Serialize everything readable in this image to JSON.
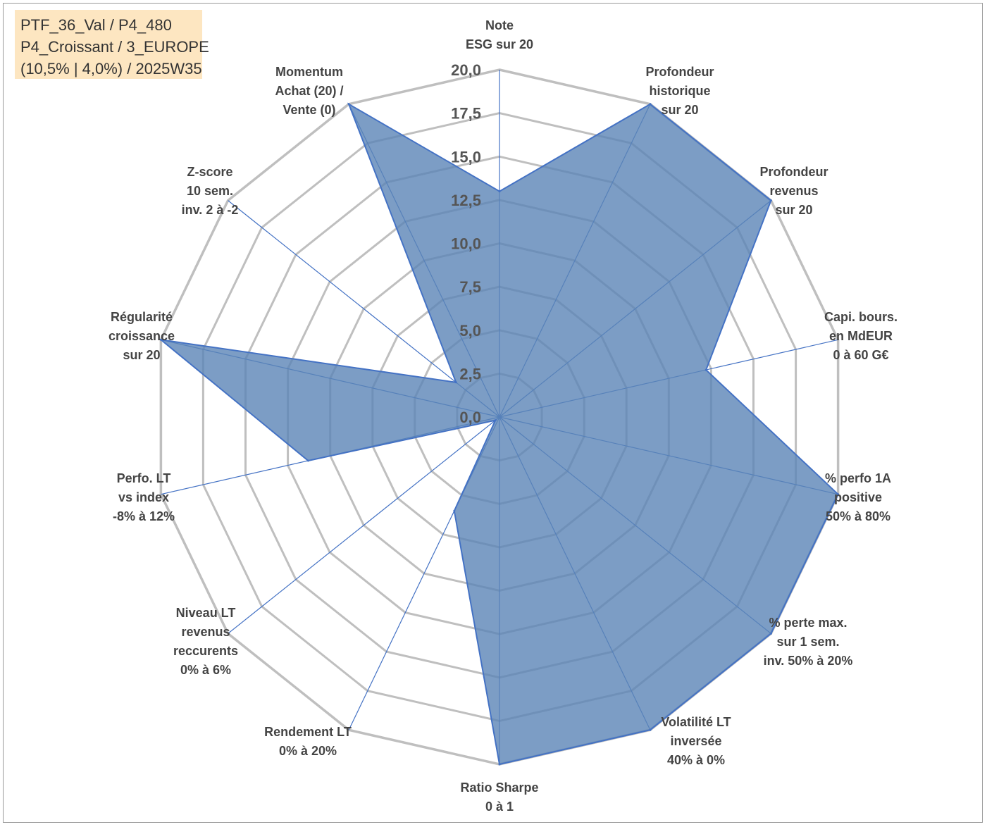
{
  "info_box": {
    "lines": [
      "PTF_36_Val / P4_480",
      "P4_Croissant / 3_EUROPE",
      "(10,5% | 4,0%) / 2025W35"
    ]
  },
  "chart_data": {
    "type": "radar",
    "r_min": 0,
    "r_max": 20,
    "r_ticks": [
      "0,0",
      "2,5",
      "5,0",
      "7,5",
      "10,0",
      "12,5",
      "15,0",
      "17,5",
      "20,0"
    ],
    "grid": true,
    "legend": "none",
    "colors": {
      "fill": "#5b85b6",
      "stroke": "#4472c4",
      "spoke": "#4472c4",
      "grid": "#bfbfbf"
    },
    "axes": [
      {
        "label": [
          "Note",
          "ESG sur 20"
        ]
      },
      {
        "label": [
          "Profondeur",
          "historique",
          "sur 20"
        ]
      },
      {
        "label": [
          "Profondeur",
          "revenus",
          "sur 20"
        ]
      },
      {
        "label": [
          "Capi. bours.",
          "en MdEUR",
          "0 à 60 G€"
        ]
      },
      {
        "label": [
          "% perfo 1A",
          "positive",
          "50% à 80%"
        ]
      },
      {
        "label": [
          "% perte max.",
          "sur 1 sem.",
          "inv. 50% à 20%"
        ]
      },
      {
        "label": [
          "Volatilité LT",
          "inversée",
          "40% à 0%"
        ]
      },
      {
        "label": [
          "Ratio Sharpe",
          "0 à 1"
        ]
      },
      {
        "label": [
          "Rendement LT",
          "0% à 20%"
        ]
      },
      {
        "label": [
          "Niveau LT",
          "revenus",
          "reccurents",
          "0% à 6%"
        ]
      },
      {
        "label": [
          "Perfo. LT",
          "vs index",
          "-8% à 12%"
        ]
      },
      {
        "label": [
          "Régularité",
          "croissance",
          "sur 20"
        ]
      },
      {
        "label": [
          "Z-score",
          "10 sem.",
          "inv. 2 à -2"
        ]
      },
      {
        "label": [
          "Momentum",
          "Achat (20) /",
          "Vente (0)"
        ]
      }
    ],
    "series": [
      {
        "values": [
          13.0,
          20.0,
          20.0,
          12.2,
          20.0,
          20.0,
          20.0,
          20.0,
          6.0,
          0.3,
          11.3,
          20.0,
          3.2,
          20.0
        ]
      }
    ]
  }
}
